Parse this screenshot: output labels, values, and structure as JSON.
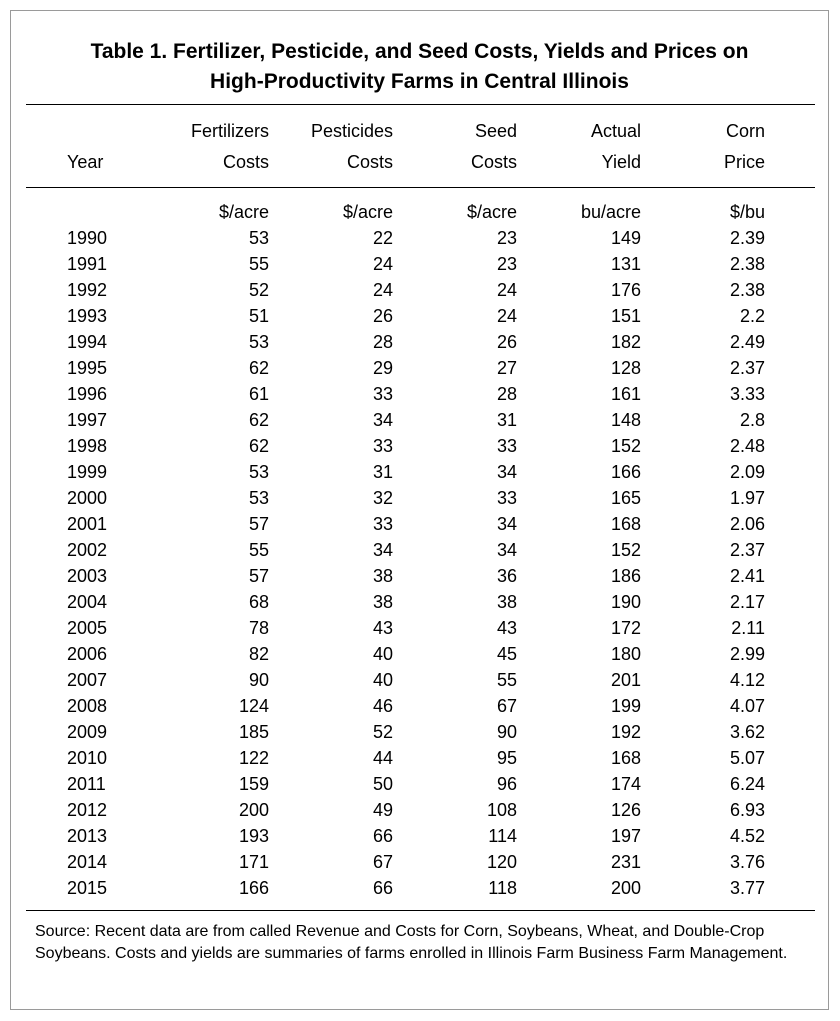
{
  "title": {
    "line1": "Table 1.  Fertilizer, Pesticide, and Seed Costs, Yields and Prices on",
    "line2": "High-Productivity Farms in Central Illinois"
  },
  "headers": {
    "row1": [
      "",
      "Fertilizers",
      "Pesticides",
      "Seed",
      "Actual",
      "Corn"
    ],
    "row2": [
      "Year",
      "Costs",
      "Costs",
      "Costs",
      "Yield",
      "Price"
    ]
  },
  "units": [
    "",
    "$/acre",
    "$/acre",
    "$/acre",
    "bu/acre",
    "$/bu"
  ],
  "rows": [
    [
      "1990",
      "53",
      "22",
      "23",
      "149",
      "2.39"
    ],
    [
      "1991",
      "55",
      "24",
      "23",
      "131",
      "2.38"
    ],
    [
      "1992",
      "52",
      "24",
      "24",
      "176",
      "2.38"
    ],
    [
      "1993",
      "51",
      "26",
      "24",
      "151",
      "2.2"
    ],
    [
      "1994",
      "53",
      "28",
      "26",
      "182",
      "2.49"
    ],
    [
      "1995",
      "62",
      "29",
      "27",
      "128",
      "2.37"
    ],
    [
      "1996",
      "61",
      "33",
      "28",
      "161",
      "3.33"
    ],
    [
      "1997",
      "62",
      "34",
      "31",
      "148",
      "2.8"
    ],
    [
      "1998",
      "62",
      "33",
      "33",
      "152",
      "2.48"
    ],
    [
      "1999",
      "53",
      "31",
      "34",
      "166",
      "2.09"
    ],
    [
      "2000",
      "53",
      "32",
      "33",
      "165",
      "1.97"
    ],
    [
      "2001",
      "57",
      "33",
      "34",
      "168",
      "2.06"
    ],
    [
      "2002",
      "55",
      "34",
      "34",
      "152",
      "2.37"
    ],
    [
      "2003",
      "57",
      "38",
      "36",
      "186",
      "2.41"
    ],
    [
      "2004",
      "68",
      "38",
      "38",
      "190",
      "2.17"
    ],
    [
      "2005",
      "78",
      "43",
      "43",
      "172",
      "2.11"
    ],
    [
      "2006",
      "82",
      "40",
      "45",
      "180",
      "2.99"
    ],
    [
      "2007",
      "90",
      "40",
      "55",
      "201",
      "4.12"
    ],
    [
      "2008",
      "124",
      "46",
      "67",
      "199",
      "4.07"
    ],
    [
      "2009",
      "185",
      "52",
      "90",
      "192",
      "3.62"
    ],
    [
      "2010",
      "122",
      "44",
      "95",
      "168",
      "5.07"
    ],
    [
      "2011",
      "159",
      "50",
      "96",
      "174",
      "6.24"
    ],
    [
      "2012",
      "200",
      "49",
      "108",
      "126",
      "6.93"
    ],
    [
      "2013",
      "193",
      "66",
      "114",
      "197",
      "4.52"
    ],
    [
      "2014",
      "171",
      "67",
      "120",
      "231",
      "3.76"
    ],
    [
      "2015",
      "166",
      "66",
      "118",
      "200",
      "3.77"
    ]
  ],
  "source": "Source:  Recent data are from called Revenue and Costs for Corn, Soybeans, Wheat, and Double-Crop Soybeans.  Costs and yields are summaries of farms enrolled in Illinois Farm Business Farm Management."
}
